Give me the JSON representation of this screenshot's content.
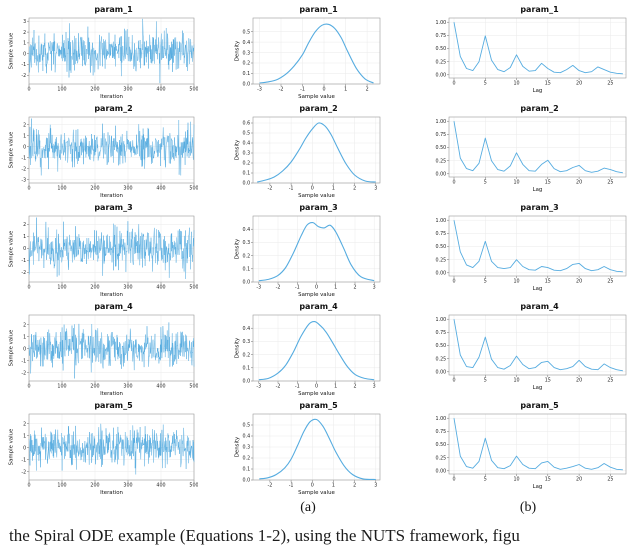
{
  "figure": {
    "caption_a": "(a)",
    "caption_b": "(b)",
    "caption_text": "the Spiral ODE example (Equations 1-2), using the NUTS framework, figu",
    "line_color": "#56ace0"
  },
  "chart_data": {
    "rows": [
      {
        "param": "param_1",
        "trace": {
          "type": "line",
          "title": "param_1",
          "xlabel": "Iteration",
          "ylabel": "Sample value",
          "xlim": [
            0,
            500
          ],
          "xticks": [
            0,
            100,
            200,
            300,
            400,
            500
          ],
          "ylim": [
            -2.8,
            3.3
          ],
          "yticks": [
            -2,
            -1,
            0,
            1,
            2,
            3
          ],
          "ml": 21,
          "lw": 0.5,
          "gen": {
            "seed": 11,
            "n": 500,
            "mean": 0.15,
            "sd": 0.85
          }
        },
        "density": {
          "type": "line",
          "title": "param_1",
          "xlabel": "Sample value",
          "ylabel": "Density",
          "xlim": [
            -3.3,
            2.6
          ],
          "xticks": [
            -3,
            -2,
            -1,
            0,
            1,
            2
          ],
          "ylim": [
            0,
            0.63
          ],
          "yticks": [
            0,
            0.1,
            0.2,
            0.3,
            0.4,
            0.5
          ],
          "ytick_labels": [
            "0.0",
            "0.1",
            "0.2",
            "0.3",
            "0.4",
            "0.5"
          ],
          "ml": 19,
          "lw": 1.1,
          "smooth": true,
          "x": [
            -3,
            -2.6,
            -2.2,
            -1.8,
            -1.4,
            -1.0,
            -0.7,
            -0.4,
            -0.1,
            0.2,
            0.5,
            0.8,
            1.1,
            1.5,
            1.9,
            2.3
          ],
          "y": [
            0.01,
            0.02,
            0.04,
            0.09,
            0.17,
            0.28,
            0.4,
            0.5,
            0.56,
            0.57,
            0.53,
            0.44,
            0.31,
            0.15,
            0.05,
            0.01
          ]
        },
        "acf": {
          "type": "line",
          "title": "param_1",
          "xlabel": "Lag",
          "xlim": [
            -0.8,
            27.5
          ],
          "xticks": [
            0,
            5,
            10,
            15,
            20,
            25
          ],
          "ylim": [
            -0.06,
            1.08
          ],
          "yticks": [
            0,
            0.25,
            0.5,
            0.75,
            1
          ],
          "ytick_labels": [
            "0.00",
            "0.25",
            "0.50",
            "0.75",
            "1.00"
          ],
          "ml": 19,
          "lw": 0.9,
          "values": [
            1.0,
            0.35,
            0.12,
            0.08,
            0.25,
            0.74,
            0.28,
            0.1,
            0.06,
            0.14,
            0.38,
            0.16,
            0.07,
            0.08,
            0.22,
            0.12,
            0.05,
            0.04,
            0.1,
            0.18,
            0.08,
            0.04,
            0.06,
            0.15,
            0.1,
            0.05,
            0.03,
            0.02
          ]
        }
      },
      {
        "param": "param_2",
        "trace": {
          "type": "line",
          "title": "param_2",
          "xlabel": "Iteration",
          "ylabel": "Sample value",
          "xlim": [
            0,
            500
          ],
          "xticks": [
            0,
            100,
            200,
            300,
            400,
            500
          ],
          "ylim": [
            -3.3,
            2.7
          ],
          "yticks": [
            -3,
            -2,
            -1,
            0,
            1,
            2
          ],
          "ml": 21,
          "lw": 0.5,
          "gen": {
            "seed": 22,
            "n": 500,
            "mean": -0.1,
            "sd": 0.85
          }
        },
        "density": {
          "type": "line",
          "title": "param_2",
          "xlabel": "Sample value",
          "ylabel": "Density",
          "xlim": [
            -2.8,
            3.2
          ],
          "xticks": [
            -2,
            -1,
            0,
            1,
            2,
            3
          ],
          "ylim": [
            0,
            0.66
          ],
          "yticks": [
            0,
            0.1,
            0.2,
            0.3,
            0.4,
            0.5,
            0.6
          ],
          "ytick_labels": [
            "0.0",
            "0.1",
            "0.2",
            "0.3",
            "0.4",
            "0.5",
            "0.6"
          ],
          "ml": 19,
          "lw": 1.1,
          "smooth": true,
          "x": [
            -2.6,
            -2.2,
            -1.8,
            -1.4,
            -1.0,
            -0.6,
            -0.3,
            0.0,
            0.3,
            0.6,
            0.9,
            1.2,
            1.6,
            2.0,
            2.5,
            3.0
          ],
          "y": [
            0.01,
            0.03,
            0.06,
            0.12,
            0.21,
            0.34,
            0.45,
            0.54,
            0.6,
            0.57,
            0.48,
            0.35,
            0.19,
            0.08,
            0.02,
            0.01
          ]
        },
        "acf": {
          "type": "line",
          "title": "param_2",
          "xlabel": "Lag",
          "xlim": [
            -0.8,
            27.5
          ],
          "xticks": [
            0,
            5,
            10,
            15,
            20,
            25
          ],
          "ylim": [
            -0.06,
            1.08
          ],
          "yticks": [
            0,
            0.25,
            0.5,
            0.75,
            1
          ],
          "ytick_labels": [
            "0.00",
            "0.25",
            "0.50",
            "0.75",
            "1.00"
          ],
          "ml": 19,
          "lw": 0.9,
          "values": [
            1.0,
            0.3,
            0.1,
            0.06,
            0.2,
            0.68,
            0.25,
            0.08,
            0.05,
            0.15,
            0.4,
            0.18,
            0.06,
            0.05,
            0.18,
            0.26,
            0.1,
            0.04,
            0.06,
            0.12,
            0.16,
            0.06,
            0.03,
            0.05,
            0.11,
            0.08,
            0.04,
            0.02
          ]
        }
      },
      {
        "param": "param_3",
        "trace": {
          "type": "line",
          "title": "param_3",
          "xlabel": "Iteration",
          "ylabel": "Sample value",
          "xlim": [
            0,
            500
          ],
          "xticks": [
            0,
            100,
            200,
            300,
            400,
            500
          ],
          "ylim": [
            -2.8,
            2.7
          ],
          "yticks": [
            -2,
            -1,
            0,
            1,
            2
          ],
          "ml": 21,
          "lw": 0.5,
          "gen": {
            "seed": 33,
            "n": 500,
            "mean": 0.0,
            "sd": 0.8
          }
        },
        "density": {
          "type": "line",
          "title": "param_3",
          "xlabel": "Sample value",
          "ylabel": "Density",
          "xlim": [
            -3.3,
            3.3
          ],
          "xticks": [
            -3,
            -2,
            -1,
            0,
            1,
            2,
            3
          ],
          "ylim": [
            0,
            0.5
          ],
          "yticks": [
            0,
            0.1,
            0.2,
            0.3,
            0.4
          ],
          "ytick_labels": [
            "0.0",
            "0.1",
            "0.2",
            "0.3",
            "0.4"
          ],
          "ml": 19,
          "lw": 1.1,
          "smooth": true,
          "x": [
            -3.0,
            -2.5,
            -2.0,
            -1.6,
            -1.2,
            -0.8,
            -0.5,
            -0.2,
            0.1,
            0.4,
            0.7,
            1.0,
            1.4,
            1.8,
            2.3,
            3.0
          ],
          "y": [
            0.01,
            0.02,
            0.05,
            0.11,
            0.22,
            0.35,
            0.43,
            0.45,
            0.42,
            0.41,
            0.43,
            0.38,
            0.26,
            0.13,
            0.04,
            0.01
          ]
        },
        "acf": {
          "type": "line",
          "title": "param_3",
          "xlabel": "Lag",
          "xlim": [
            -0.8,
            27.5
          ],
          "xticks": [
            0,
            5,
            10,
            15,
            20,
            25
          ],
          "ylim": [
            -0.06,
            1.08
          ],
          "yticks": [
            0,
            0.25,
            0.5,
            0.75,
            1
          ],
          "ytick_labels": [
            "0.00",
            "0.25",
            "0.50",
            "0.75",
            "1.00"
          ],
          "ml": 19,
          "lw": 0.9,
          "values": [
            1.0,
            0.4,
            0.15,
            0.1,
            0.22,
            0.6,
            0.22,
            0.1,
            0.08,
            0.1,
            0.25,
            0.12,
            0.06,
            0.05,
            0.12,
            0.1,
            0.05,
            0.04,
            0.08,
            0.16,
            0.18,
            0.08,
            0.04,
            0.06,
            0.12,
            0.06,
            0.03,
            0.02
          ]
        }
      },
      {
        "param": "param_4",
        "trace": {
          "type": "line",
          "title": "param_4",
          "xlabel": "Iteration",
          "ylabel": "Sample value",
          "xlim": [
            0,
            500
          ],
          "xticks": [
            0,
            100,
            200,
            300,
            400,
            500
          ],
          "ylim": [
            -2.7,
            2.8
          ],
          "yticks": [
            -2,
            -1,
            0,
            1,
            2
          ],
          "ml": 21,
          "lw": 0.5,
          "gen": {
            "seed": 44,
            "n": 500,
            "mean": 0.05,
            "sd": 0.8
          }
        },
        "density": {
          "type": "line",
          "title": "param_4",
          "xlabel": "Sample value",
          "ylabel": "Density",
          "xlim": [
            -3.3,
            3.3
          ],
          "xticks": [
            -3,
            -2,
            -1,
            0,
            1,
            2,
            3
          ],
          "ylim": [
            0,
            0.5
          ],
          "yticks": [
            0,
            0.1,
            0.2,
            0.3,
            0.4
          ],
          "ytick_labels": [
            "0.0",
            "0.1",
            "0.2",
            "0.3",
            "0.4"
          ],
          "ml": 19,
          "lw": 1.1,
          "smooth": true,
          "x": [
            -3.0,
            -2.5,
            -2.0,
            -1.6,
            -1.2,
            -0.8,
            -0.4,
            -0.1,
            0.2,
            0.5,
            0.8,
            1.2,
            1.6,
            2.0,
            2.5,
            3.0
          ],
          "y": [
            0.01,
            0.02,
            0.06,
            0.12,
            0.22,
            0.34,
            0.43,
            0.45,
            0.42,
            0.37,
            0.3,
            0.2,
            0.11,
            0.05,
            0.02,
            0.01
          ]
        },
        "acf": {
          "type": "line",
          "title": "param_4",
          "xlabel": "Lag",
          "xlim": [
            -0.8,
            27.5
          ],
          "xticks": [
            0,
            5,
            10,
            15,
            20,
            25
          ],
          "ylim": [
            -0.06,
            1.08
          ],
          "yticks": [
            0,
            0.25,
            0.5,
            0.75,
            1
          ],
          "ytick_labels": [
            "0.00",
            "0.25",
            "0.50",
            "0.75",
            "1.00"
          ],
          "ml": 19,
          "lw": 0.9,
          "values": [
            1.0,
            0.32,
            0.1,
            0.08,
            0.28,
            0.66,
            0.24,
            0.08,
            0.05,
            0.12,
            0.3,
            0.14,
            0.06,
            0.08,
            0.18,
            0.2,
            0.08,
            0.04,
            0.06,
            0.1,
            0.22,
            0.1,
            0.05,
            0.04,
            0.15,
            0.08,
            0.04,
            0.02
          ]
        }
      },
      {
        "param": "param_5",
        "trace": {
          "type": "line",
          "title": "param_5",
          "xlabel": "Iteration",
          "ylabel": "Sample value",
          "xlim": [
            0,
            500
          ],
          "xticks": [
            0,
            100,
            200,
            300,
            400,
            500
          ],
          "ylim": [
            -2.7,
            2.8
          ],
          "yticks": [
            -2,
            -1,
            0,
            1,
            2
          ],
          "ml": 21,
          "lw": 0.5,
          "gen": {
            "seed": 55,
            "n": 500,
            "mean": 0.0,
            "sd": 0.8
          }
        },
        "density": {
          "type": "line",
          "title": "param_5",
          "xlabel": "Sample value",
          "ylabel": "Density",
          "xlim": [
            -2.8,
            3.2
          ],
          "xticks": [
            -2,
            -1,
            0,
            1,
            2,
            3
          ],
          "ylim": [
            0,
            0.6
          ],
          "yticks": [
            0,
            0.1,
            0.2,
            0.3,
            0.4,
            0.5
          ],
          "ytick_labels": [
            "0.0",
            "0.1",
            "0.2",
            "0.3",
            "0.4",
            "0.5"
          ],
          "ml": 19,
          "lw": 1.1,
          "smooth": true,
          "x": [
            -2.5,
            -2.1,
            -1.7,
            -1.3,
            -1.0,
            -0.7,
            -0.4,
            -0.1,
            0.2,
            0.5,
            0.8,
            1.1,
            1.5,
            1.9,
            2.4,
            3.0
          ],
          "y": [
            0.01,
            0.02,
            0.05,
            0.11,
            0.19,
            0.31,
            0.44,
            0.53,
            0.55,
            0.49,
            0.38,
            0.26,
            0.13,
            0.05,
            0.01,
            0.005
          ]
        },
        "acf": {
          "type": "line",
          "title": "param_5",
          "xlabel": "Lag",
          "xlim": [
            -0.8,
            27.5
          ],
          "xticks": [
            0,
            5,
            10,
            15,
            20,
            25
          ],
          "ylim": [
            -0.06,
            1.08
          ],
          "yticks": [
            0,
            0.25,
            0.5,
            0.75,
            1
          ],
          "ytick_labels": [
            "0.00",
            "0.25",
            "0.50",
            "0.75",
            "1.00"
          ],
          "ml": 19,
          "lw": 0.9,
          "values": [
            1.0,
            0.28,
            0.08,
            0.05,
            0.18,
            0.62,
            0.2,
            0.06,
            0.04,
            0.1,
            0.28,
            0.12,
            0.05,
            0.04,
            0.15,
            0.18,
            0.07,
            0.03,
            0.05,
            0.08,
            0.12,
            0.05,
            0.03,
            0.06,
            0.14,
            0.07,
            0.03,
            0.02
          ]
        }
      }
    ]
  }
}
